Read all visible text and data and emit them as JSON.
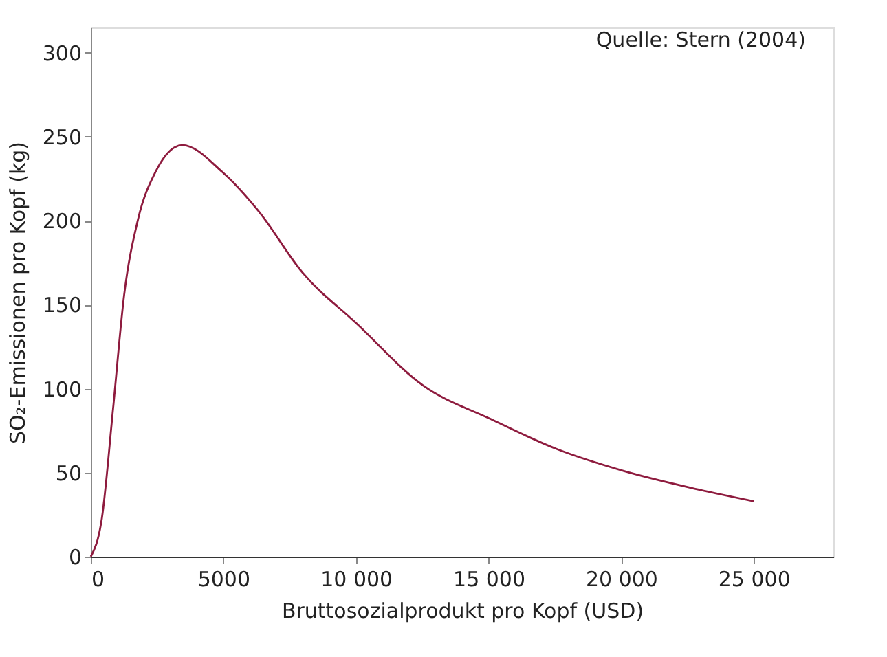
{
  "chart_data": {
    "type": "line",
    "xlabel": "Bruttosozialprodukt pro Kopf (USD)",
    "ylabel": "SO₂-Emissionen pro Kopf (kg)",
    "annotations": [
      "Quelle: Stern (2004)"
    ],
    "x": [
      0,
      420,
      840,
      1260,
      1770,
      2440,
      3450,
      4960,
      6310,
      7990,
      10010,
      12520,
      15070,
      17580,
      20100,
      22630,
      25000
    ],
    "series": [
      {
        "color": "#8e1b3e",
        "values": [
          0,
          23,
          88,
          156,
          200,
          229,
          245,
          229,
          206,
          169,
          139,
          102,
          82,
          64,
          51,
          41,
          33
        ]
      }
    ],
    "xlim": [
      0,
      28000
    ],
    "xticks": [
      0,
      5000,
      {
        "value": 10000,
        "label": "10 000"
      },
      {
        "value": 15000,
        "label": "15 000"
      },
      {
        "value": 20000,
        "label": "20 000"
      },
      {
        "value": 25000,
        "label": "25 000"
      }
    ],
    "ylim": [
      0,
      315
    ],
    "yticks": [
      0,
      50,
      100,
      150,
      200,
      250,
      300
    ],
    "grid": false,
    "marker": "none",
    "line_style": "solid"
  }
}
